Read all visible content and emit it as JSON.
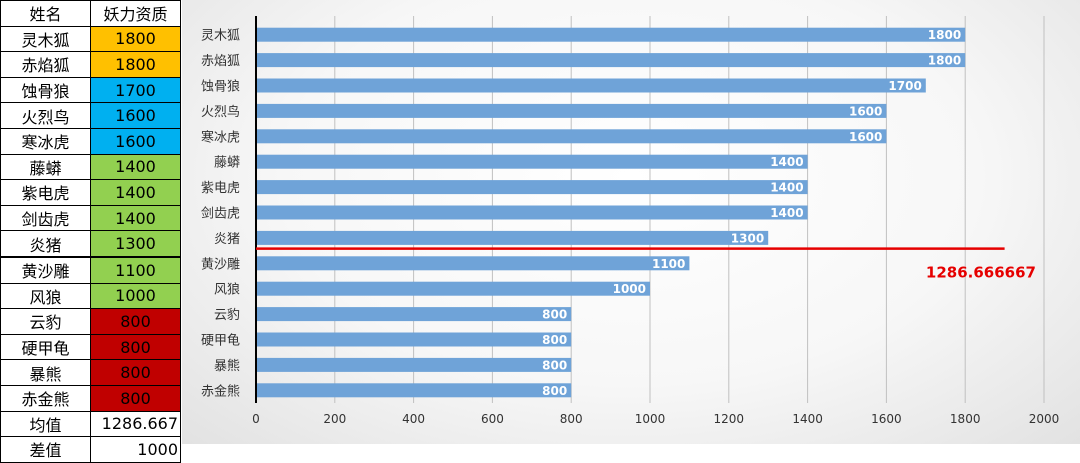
{
  "table": {
    "headers": [
      "姓名",
      "妖力资质"
    ],
    "rows": [
      {
        "name": "灵木狐",
        "value": "1800",
        "color": "#ffc000"
      },
      {
        "name": "赤焰狐",
        "value": "1800",
        "color": "#ffc000"
      },
      {
        "name": "蚀骨狼",
        "value": "1700",
        "color": "#00b0f0"
      },
      {
        "name": "火烈鸟",
        "value": "1600",
        "color": "#00b0f0"
      },
      {
        "name": "寒冰虎",
        "value": "1600",
        "color": "#00b0f0"
      },
      {
        "name": "藤蟒",
        "value": "1400",
        "color": "#92d050"
      },
      {
        "name": "紫电虎",
        "value": "1400",
        "color": "#92d050"
      },
      {
        "name": "剑齿虎",
        "value": "1400",
        "color": "#92d050"
      },
      {
        "name": "炎猪",
        "value": "1300",
        "color": "#92d050"
      },
      {
        "name": "黄沙雕",
        "value": "1100",
        "color": "#92d050"
      },
      {
        "name": "风狼",
        "value": "1000",
        "color": "#92d050"
      },
      {
        "name": "云豹",
        "value": "800",
        "color": "#c00000"
      },
      {
        "name": "硬甲龟",
        "value": "800",
        "color": "#c00000"
      },
      {
        "name": "暴熊",
        "value": "800",
        "color": "#c00000"
      },
      {
        "name": "赤金熊",
        "value": "800",
        "color": "#c00000"
      }
    ],
    "stats": [
      {
        "label": "均值",
        "value": "1286.667"
      },
      {
        "label": "差值",
        "value": "1000"
      }
    ]
  },
  "chart_data": {
    "type": "bar",
    "orientation": "horizontal",
    "categories": [
      "灵木狐",
      "赤焰狐",
      "蚀骨狼",
      "火烈鸟",
      "寒冰虎",
      "藤蟒",
      "紫电虎",
      "剑齿虎",
      "炎猪",
      "黄沙雕",
      "风狼",
      "云豹",
      "硬甲龟",
      "暴熊",
      "赤金熊"
    ],
    "values": [
      1800,
      1800,
      1700,
      1600,
      1600,
      1400,
      1400,
      1400,
      1300,
      1100,
      1000,
      800,
      800,
      800,
      800
    ],
    "xlim": [
      0,
      2000
    ],
    "xticks": [
      "0",
      "200",
      "400",
      "600",
      "800",
      "1000",
      "1200",
      "1400",
      "1600",
      "1800",
      "2000"
    ],
    "bar_color": "#6fa3d8",
    "grid": true,
    "mean_line": {
      "value": 1286.666667,
      "label": "1286.666667",
      "color": "#e60000"
    }
  }
}
